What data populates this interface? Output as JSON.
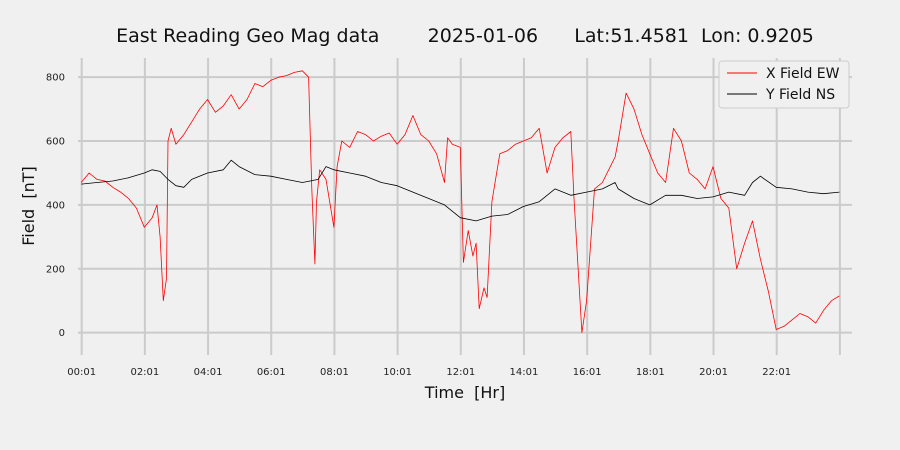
{
  "chart_data": {
    "type": "line",
    "title": "East Reading Geo Mag data        2025-01-06      Lat:51.4581  Lon: 0.9205",
    "xlabel": "Time  [Hr]",
    "ylabel": "Field  [nT]",
    "xlim": [
      -0.1,
      24.4
    ],
    "ylim": [
      -70,
      860
    ],
    "x_tick_values": [
      0.0167,
      2.0167,
      4.0167,
      6.0167,
      8.0167,
      10.0167,
      12.0167,
      14.0167,
      16.0167,
      18.0167,
      20.0167,
      22.0167,
      24.0167
    ],
    "x_tick_labels": [
      "00:01",
      "02:01",
      "04:01",
      "06:01",
      "08:01",
      "10:01",
      "12:01",
      "14:01",
      "16:01",
      "18:01",
      "20:01",
      "22:01",
      ""
    ],
    "y_ticks": [
      0,
      200,
      400,
      600,
      800
    ],
    "grid": true,
    "legend_position": "top-right",
    "series": [
      {
        "name": "X Field EW",
        "color": "#ff0000",
        "x": [
          0.0,
          0.25,
          0.5,
          0.75,
          1.0,
          1.25,
          1.5,
          1.75,
          2.0,
          2.25,
          2.4,
          2.5,
          2.6,
          2.7,
          2.75,
          2.85,
          3.0,
          3.25,
          3.5,
          3.75,
          4.0,
          4.25,
          4.5,
          4.75,
          5.0,
          5.25,
          5.5,
          5.75,
          6.0,
          6.25,
          6.5,
          6.75,
          7.0,
          7.2,
          7.3,
          7.4,
          7.45,
          7.55,
          7.75,
          8.0,
          8.1,
          8.25,
          8.5,
          8.75,
          9.0,
          9.25,
          9.5,
          9.75,
          10.0,
          10.25,
          10.5,
          10.75,
          11.0,
          11.25,
          11.5,
          11.6,
          11.75,
          12.0,
          12.1,
          12.25,
          12.4,
          12.5,
          12.6,
          12.75,
          12.85,
          13.0,
          13.25,
          13.5,
          13.75,
          14.0,
          14.25,
          14.5,
          14.75,
          15.0,
          15.25,
          15.5,
          15.6,
          15.75,
          15.85,
          16.0,
          16.25,
          16.5,
          16.75,
          16.9,
          17.0,
          17.25,
          17.5,
          17.75,
          18.0,
          18.25,
          18.5,
          18.75,
          19.0,
          19.25,
          19.5,
          19.75,
          20.0,
          20.25,
          20.5,
          20.75,
          21.0,
          21.25,
          21.5,
          21.75,
          22.0,
          22.25,
          22.5,
          22.75,
          23.0,
          23.25,
          23.5,
          23.75,
          24.0
        ],
        "values": [
          470,
          500,
          480,
          475,
          455,
          440,
          420,
          390,
          330,
          360,
          400,
          300,
          100,
          170,
          600,
          640,
          590,
          620,
          660,
          700,
          730,
          690,
          710,
          745,
          700,
          730,
          780,
          770,
          790,
          800,
          805,
          815,
          820,
          800,
          450,
          215,
          410,
          510,
          480,
          330,
          520,
          600,
          580,
          630,
          620,
          600,
          615,
          625,
          590,
          620,
          680,
          620,
          600,
          560,
          470,
          610,
          590,
          580,
          220,
          320,
          240,
          280,
          75,
          140,
          110,
          410,
          560,
          570,
          590,
          600,
          610,
          640,
          500,
          580,
          610,
          630,
          420,
          170,
          0,
          100,
          450,
          470,
          520,
          550,
          600,
          750,
          700,
          620,
          560,
          500,
          470,
          640,
          600,
          500,
          480,
          450,
          520,
          420,
          390,
          200,
          280,
          350,
          230,
          130,
          10,
          20,
          40,
          60,
          50,
          30,
          70,
          100,
          115
        ]
      },
      {
        "name": "Y Field NS",
        "color": "#000000",
        "x": [
          0.0,
          0.5,
          1.0,
          1.5,
          2.0,
          2.25,
          2.5,
          2.75,
          3.0,
          3.25,
          3.5,
          4.0,
          4.5,
          4.75,
          5.0,
          5.5,
          6.0,
          6.5,
          7.0,
          7.25,
          7.5,
          7.75,
          8.0,
          8.5,
          9.0,
          9.5,
          10.0,
          10.5,
          11.0,
          11.5,
          12.0,
          12.5,
          13.0,
          13.5,
          14.0,
          14.5,
          15.0,
          15.5,
          16.0,
          16.5,
          16.9,
          17.0,
          17.5,
          18.0,
          18.5,
          19.0,
          19.5,
          20.0,
          20.5,
          21.0,
          21.25,
          21.5,
          22.0,
          22.5,
          23.0,
          23.5,
          24.0
        ],
        "values": [
          465,
          470,
          475,
          485,
          500,
          510,
          505,
          480,
          460,
          455,
          480,
          500,
          510,
          540,
          520,
          495,
          490,
          480,
          470,
          475,
          480,
          520,
          510,
          500,
          490,
          470,
          460,
          440,
          420,
          400,
          360,
          350,
          365,
          370,
          395,
          410,
          450,
          430,
          440,
          450,
          470,
          450,
          420,
          400,
          430,
          430,
          420,
          425,
          440,
          430,
          470,
          490,
          455,
          450,
          440,
          435,
          440
        ]
      }
    ]
  }
}
